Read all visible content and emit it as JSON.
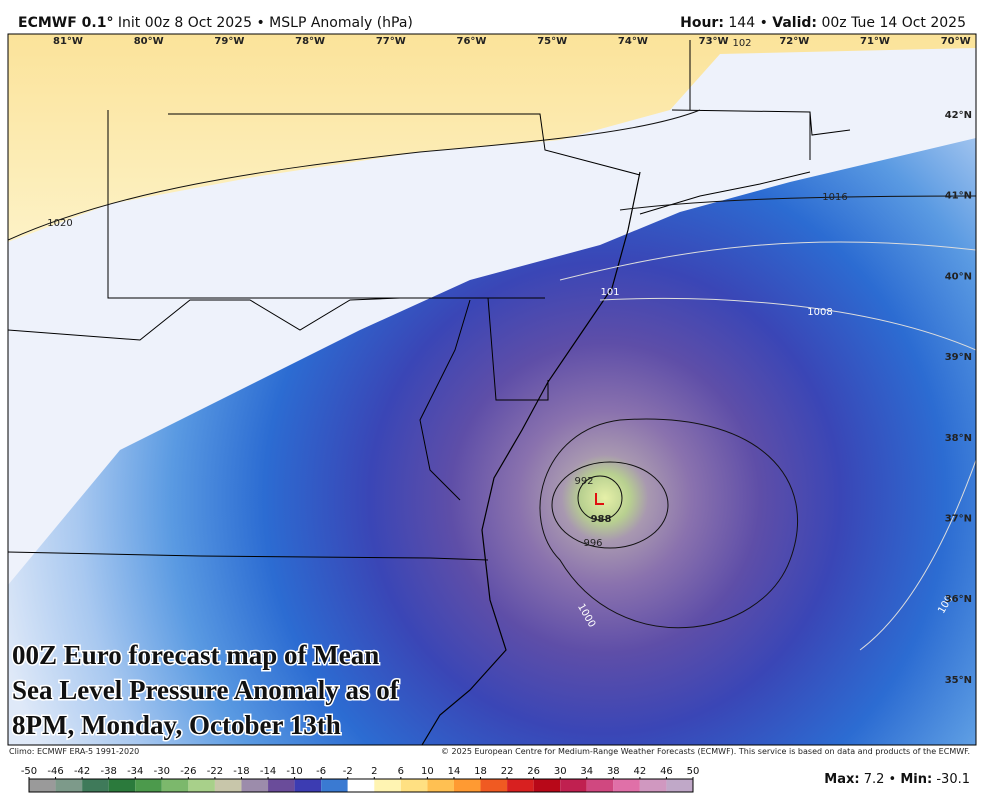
{
  "header": {
    "left": [
      {
        "text": "ECMWF 0.1°",
        "bold": true
      },
      {
        "text": "Init 00z 8 Oct 2025"
      },
      {
        "text": "•"
      },
      {
        "text": "MSLP Anomaly (hPa)"
      }
    ],
    "right": [
      {
        "text": "Hour:",
        "bold": true
      },
      {
        "text": "144"
      },
      {
        "text": "•"
      },
      {
        "text": "Valid:",
        "bold": true
      },
      {
        "text": "00z Tue 14 Oct 2025"
      }
    ]
  },
  "map": {
    "longitudes": [
      "81°W",
      "80°W",
      "79°W",
      "78°W",
      "77°W",
      "76°W",
      "75°W",
      "74°W",
      "73°W",
      "72°W",
      "71°W",
      "70°W"
    ],
    "latitudes": [
      "42°N",
      "41°N",
      "40°N",
      "39°N",
      "38°N",
      "37°N",
      "36°N",
      "35°N"
    ],
    "contour_labels": [
      1020,
      1016,
      "101",
      1008,
      992,
      988,
      996,
      1000,
      "100",
      "102"
    ],
    "caption": [
      "00Z Euro forecast map of Mean",
      "Sea Level Pressure Anomaly as of",
      "8PM, Monday, October 13th"
    ]
  },
  "footer": {
    "climo": "Climo: ECMWF ERA-5 1991-2020",
    "copyright": "© 2025 European Centre for Medium-Range Weather Forecasts (ECMWF). This service is based on data and products of the ECMWF."
  },
  "colorbar": {
    "ticks": [
      -50,
      -46,
      -42,
      -38,
      -34,
      -30,
      -26,
      -22,
      -18,
      -14,
      -10,
      -6,
      -2,
      2,
      6,
      10,
      14,
      18,
      22,
      26,
      30,
      34,
      38,
      42,
      46,
      50
    ],
    "colors": [
      "#9a9a9a",
      "#7d9a8a",
      "#3f7a5a",
      "#2b7a3c",
      "#4c9a4c",
      "#7cb86c",
      "#a8d08a",
      "#c8c6aa",
      "#9c8cab",
      "#6a4c9a",
      "#3c3cb2",
      "#3a7ad2",
      "#ffffff",
      "#fff4b2",
      "#ffe082",
      "#ffc052",
      "#ff9a32",
      "#f05a22",
      "#d82020",
      "#b80818",
      "#c02050",
      "#d04880",
      "#e070a8",
      "#d098c0",
      "#c0a8c8"
    ]
  },
  "stats": [
    {
      "label": "Max:",
      "value": 7.2
    },
    {
      "text": "•"
    },
    {
      "label": "Min:",
      "value": -30.1
    }
  ]
}
